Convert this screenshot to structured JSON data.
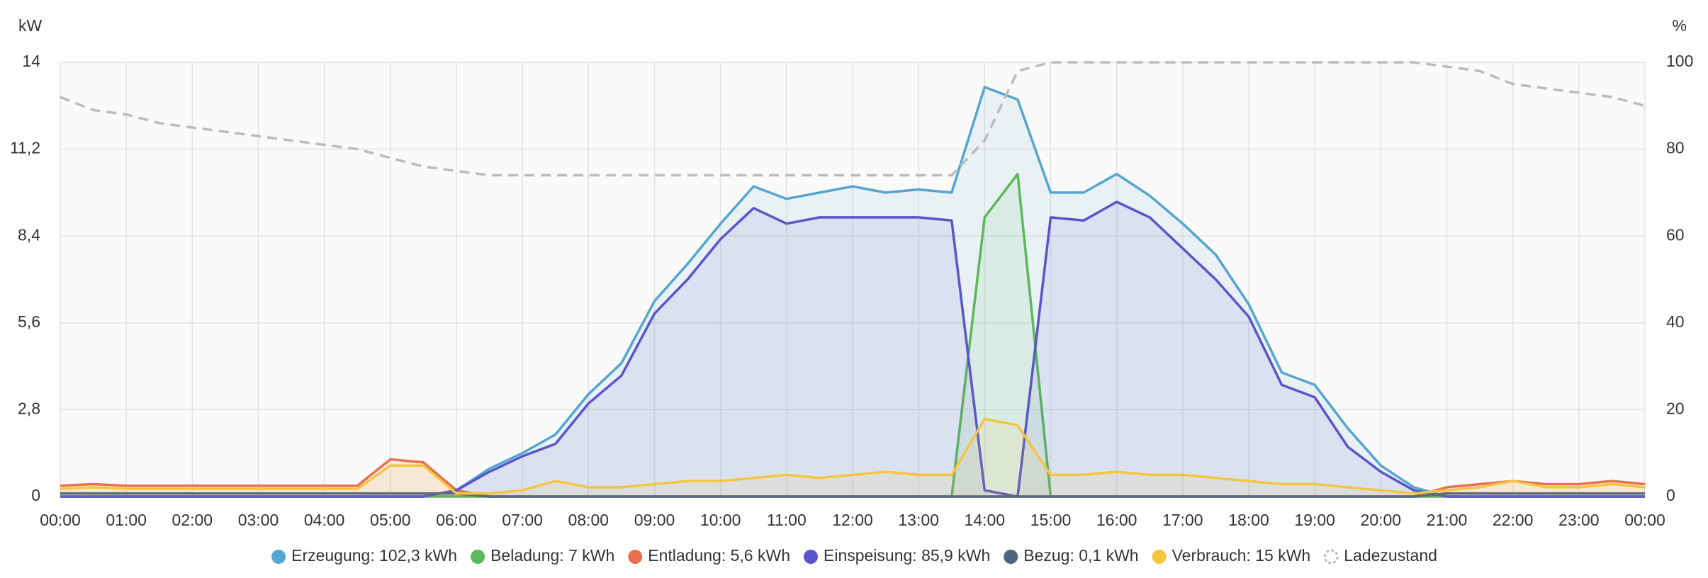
{
  "chart_data": {
    "type": "line",
    "y_label": "kW",
    "y2_label": "%",
    "categories": [
      "00:00",
      null,
      "01:00",
      null,
      "02:00",
      null,
      "03:00",
      null,
      "04:00",
      null,
      "05:00",
      null,
      "06:00",
      null,
      "07:00",
      null,
      "08:00",
      null,
      "09:00",
      null,
      "10:00",
      null,
      "11:00",
      null,
      "12:00",
      null,
      "13:00",
      null,
      "14:00",
      null,
      "15:00",
      null,
      "16:00",
      null,
      "17:00",
      null,
      "18:00",
      null,
      "19:00",
      null,
      "20:00",
      null,
      "21:00",
      null,
      "22:00",
      null,
      "23:00",
      null,
      "00:00"
    ],
    "ylim": [
      0,
      14
    ],
    "yticks": [
      0,
      {
        "value": 2.8,
        "label": "2,8"
      },
      {
        "value": 5.6,
        "label": "5,6"
      },
      {
        "value": 8.4,
        "label": "8,4"
      },
      {
        "value": 11.2,
        "label": "11,2"
      },
      14
    ],
    "y2lim": [
      0,
      100
    ],
    "y2ticks": [
      0,
      20,
      40,
      60,
      80,
      100
    ],
    "grid": true,
    "series": [
      {
        "name": "Erzeugung: 102,3 kWh",
        "color": "#54a6cf",
        "values": [
          0,
          0,
          0,
          0,
          0,
          0,
          0,
          0,
          0,
          0,
          0,
          0,
          0.2,
          0.9,
          1.4,
          2.0,
          3.3,
          4.3,
          6.3,
          7.5,
          8.8,
          10.0,
          9.6,
          9.8,
          10.0,
          9.8,
          9.9,
          9.8,
          13.2,
          12.8,
          9.8,
          9.8,
          10.4,
          9.7,
          8.8,
          7.8,
          6.2,
          4.0,
          3.6,
          2.2,
          1.0,
          0.3,
          0,
          0,
          0,
          0,
          0,
          0,
          0
        ]
      },
      {
        "name": "Beladung: 7 kWh",
        "color": "#5cb85c",
        "values": [
          0,
          0,
          0,
          0,
          0,
          0,
          0,
          0,
          0,
          0,
          0,
          0,
          0,
          0,
          0,
          0,
          0,
          0,
          0,
          0,
          0,
          0,
          0,
          0,
          0,
          0,
          0,
          0,
          9.0,
          10.4,
          0,
          0,
          0,
          0,
          0,
          0,
          0,
          0,
          0,
          0,
          0,
          0,
          0,
          0,
          0,
          0,
          0,
          0,
          0
        ]
      },
      {
        "name": "Entladung: 5,6 kWh",
        "color": "#e8704f",
        "values": [
          0.35,
          0.4,
          0.35,
          0.35,
          0.35,
          0.35,
          0.35,
          0.35,
          0.35,
          0.35,
          1.2,
          1.1,
          0.2,
          0,
          0,
          0,
          0,
          0,
          0,
          0,
          0,
          0,
          0,
          0,
          0,
          0,
          0,
          0,
          0,
          0,
          0,
          0,
          0,
          0,
          0,
          0,
          0,
          0,
          0,
          0,
          0,
          0,
          0.3,
          0.4,
          0.5,
          0.4,
          0.4,
          0.5,
          0.4
        ]
      },
      {
        "name": "Einspeisung: 85,9 kWh",
        "color": "#5a55c8",
        "values": [
          0,
          0,
          0,
          0,
          0,
          0,
          0,
          0,
          0,
          0,
          0,
          0,
          0.2,
          0.8,
          1.3,
          1.7,
          3.0,
          3.9,
          5.9,
          7.0,
          8.3,
          9.3,
          8.8,
          9.0,
          9.0,
          9.0,
          9.0,
          8.9,
          0.2,
          0,
          9.0,
          8.9,
          9.5,
          9.0,
          8.0,
          7.0,
          5.8,
          3.6,
          3.2,
          1.6,
          0.8,
          0.2,
          0,
          0,
          0,
          0,
          0,
          0,
          0
        ]
      },
      {
        "name": "Bezug: 0,1 kWh",
        "color": "#4c6280",
        "values": [
          0.1,
          0.1,
          0.1,
          0.1,
          0.1,
          0.1,
          0.1,
          0.1,
          0.1,
          0.1,
          0.1,
          0.1,
          0.1,
          0,
          0,
          0,
          0,
          0,
          0,
          0,
          0,
          0,
          0,
          0,
          0,
          0,
          0,
          0,
          0,
          0,
          0,
          0,
          0,
          0,
          0,
          0,
          0,
          0,
          0,
          0,
          0,
          0,
          0.1,
          0.1,
          0.1,
          0.1,
          0.1,
          0.1,
          0.1
        ]
      },
      {
        "name": "Verbrauch: 15 kWh",
        "color": "#f4c53f",
        "values": [
          0.25,
          0.3,
          0.25,
          0.25,
          0.25,
          0.25,
          0.25,
          0.25,
          0.25,
          0.25,
          1.0,
          1.0,
          0.1,
          0.1,
          0.2,
          0.5,
          0.3,
          0.3,
          0.4,
          0.5,
          0.5,
          0.6,
          0.7,
          0.6,
          0.7,
          0.8,
          0.7,
          0.7,
          2.5,
          2.3,
          0.7,
          0.7,
          0.8,
          0.7,
          0.7,
          0.6,
          0.5,
          0.4,
          0.4,
          0.3,
          0.2,
          0.1,
          0.2,
          0.3,
          0.5,
          0.3,
          0.3,
          0.4,
          0.3
        ]
      },
      {
        "name": "Ladezustand",
        "color": "#bbbbbb",
        "axis": "y2",
        "dashed": true,
        "values": [
          92,
          89,
          88,
          86,
          85,
          84,
          83,
          82,
          81,
          80,
          78,
          76,
          75,
          74,
          74,
          74,
          74,
          74,
          74,
          74,
          74,
          74,
          74,
          74,
          74,
          74,
          74,
          74,
          82,
          98,
          100,
          100,
          100,
          100,
          100,
          100,
          100,
          100,
          100,
          100,
          100,
          100,
          99,
          98,
          95,
          94,
          93,
          92,
          90
        ]
      }
    ]
  }
}
